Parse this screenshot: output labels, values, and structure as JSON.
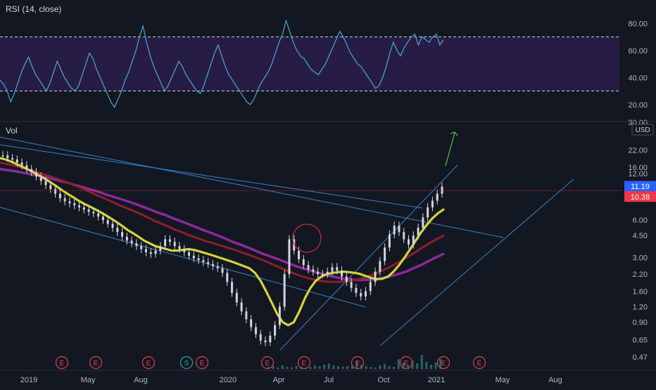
{
  "colors": {
    "background": "#131722",
    "rsi_line": "#4aa8d8",
    "rsi_band_fill": "#2b1f4a",
    "rsi_band_line": "#cfcfe0",
    "candle_up": "#d1d4dc",
    "candle_down": "#d1d4dc",
    "trendline": "#3a8fd8",
    "ma_fast": "#d4d43a",
    "ma_mid": "#8c1f2a",
    "ma_slow": "#8a2b9a",
    "arrow": "#3cc43c",
    "circle": "#c0303a",
    "price_last": "#2962ff",
    "price_ref": "#f23645",
    "event_marker": "#e0404a",
    "split_marker": "#26a69a",
    "volume": "#2b6b6b"
  },
  "rsi_panel": {
    "indicator_label": "RSI (14, close)",
    "ticks": [
      "80.00",
      "60.00",
      "40.00",
      "20.00"
    ],
    "tick_values": [
      80,
      60,
      40,
      20
    ],
    "bottom_label": "30.00"
  },
  "price_panel": {
    "volume_label": "Vol",
    "currency_label": "USD",
    "ticks": [
      "22.00",
      "16.00",
      "6.00",
      "4.50",
      "3.00",
      "2.20",
      "1.60",
      "1.20",
      "0.90",
      "0.65",
      "0.47"
    ],
    "tick_values": [
      22,
      16,
      6,
      4.5,
      3,
      2.2,
      1.6,
      1.2,
      0.9,
      0.65,
      0.47
    ],
    "partial_label": "12.00",
    "last_price": "11.19",
    "ref_price": "10.38"
  },
  "time_axis": {
    "labels": [
      "2019",
      "May",
      "Aug",
      "2020",
      "Apr",
      "Jul",
      "Oct",
      "2021",
      "May",
      "Aug"
    ]
  },
  "events": {
    "earnings_label": "E",
    "split_label": "S"
  },
  "chart_data": {
    "type": "line",
    "title": "",
    "rsi": {
      "ylim": [
        10,
        90
      ],
      "overbought": 70,
      "oversold": 30,
      "values": [
        38,
        35,
        30,
        22,
        28,
        36,
        44,
        50,
        55,
        48,
        42,
        38,
        34,
        30,
        36,
        44,
        52,
        46,
        40,
        36,
        32,
        30,
        34,
        42,
        50,
        58,
        54,
        46,
        40,
        34,
        28,
        22,
        18,
        24,
        30,
        38,
        44,
        52,
        60,
        70,
        78,
        66,
        56,
        48,
        42,
        36,
        30,
        34,
        40,
        46,
        52,
        48,
        42,
        38,
        34,
        30,
        28,
        34,
        42,
        50,
        58,
        64,
        56,
        48,
        42,
        38,
        34,
        30,
        26,
        22,
        20,
        24,
        30,
        36,
        40,
        44,
        50,
        58,
        66,
        72,
        82,
        74,
        66,
        60,
        56,
        54,
        50,
        46,
        44,
        42,
        46,
        50,
        56,
        62,
        68,
        74,
        70,
        64,
        58,
        54,
        50,
        48,
        44,
        40,
        36,
        32,
        34,
        40,
        48,
        58,
        66,
        60,
        56,
        62,
        66,
        70,
        72,
        64,
        70,
        68,
        66,
        70,
        72,
        64,
        68
      ]
    },
    "price": {
      "yscale": "log",
      "ylim": [
        0.43,
        30
      ],
      "close": [
        20,
        19,
        18.5,
        17.5,
        16.6,
        15.5,
        14.6,
        13.5,
        12.4,
        11.5,
        10.7,
        9.8,
        9.0,
        8.5,
        8.2,
        7.9,
        7.6,
        7.3,
        7.0,
        6.8,
        6.4,
        6.0,
        5.6,
        5.2,
        4.8,
        4.4,
        4.1,
        3.9,
        3.7,
        3.5,
        3.3,
        3.2,
        3.4,
        3.7,
        4.2,
        4.0,
        3.7,
        3.5,
        3.3,
        3.1,
        2.95,
        2.85,
        2.75,
        2.65,
        2.55,
        2.45,
        2.25,
        1.9,
        1.55,
        1.3,
        1.1,
        0.95,
        0.82,
        0.72,
        0.64,
        0.62,
        0.7,
        0.85,
        1.2,
        2.2,
        4.2,
        3.4,
        2.9,
        2.6,
        2.4,
        2.3,
        2.2,
        2.2,
        2.3,
        2.5,
        2.35,
        2.1,
        1.9,
        1.7,
        1.55,
        1.45,
        1.6,
        1.9,
        2.3,
        2.8,
        3.6,
        4.6,
        5.4,
        4.8,
        4.2,
        3.8,
        4.5,
        5.2,
        6.3,
        7.6,
        8.6,
        9.8,
        11.19
      ],
      "last": 11.19,
      "ref_line": 10.38,
      "ma_fast": [
        19,
        18.5,
        17.8,
        17,
        16.2,
        15.4,
        14.6,
        13.8,
        13,
        12.2,
        11.4,
        10.6,
        9.9,
        9.3,
        8.7,
        8.2,
        7.8,
        7.4,
        7.0,
        6.6,
        6.2,
        5.8,
        5.4,
        5.0,
        4.7,
        4.4,
        4.1,
        3.9,
        3.7,
        3.6,
        3.5,
        3.4,
        3.4,
        3.45,
        3.5,
        3.45,
        3.35,
        3.25,
        3.15,
        3.05,
        2.95,
        2.85,
        2.75,
        2.65,
        2.55,
        2.45,
        2.25,
        1.95,
        1.6,
        1.3,
        1.05,
        0.9,
        0.85,
        0.9,
        1.1,
        1.4,
        1.7,
        1.95,
        2.1,
        2.2,
        2.25,
        2.28,
        2.3,
        2.28,
        2.25,
        2.2,
        2.12,
        2.05,
        2.0,
        2.02,
        2.1,
        2.3,
        2.6,
        3.0,
        3.5,
        4.1,
        4.8,
        5.5,
        6.2,
        6.8,
        7.3
      ],
      "ma_mid": [
        17.5,
        17,
        16.5,
        16,
        15.4,
        14.8,
        14.2,
        13.6,
        13,
        12.4,
        11.8,
        11.2,
        10.6,
        10.0,
        9.4,
        8.9,
        8.4,
        7.9,
        7.5,
        7.1,
        6.7,
        6.3,
        5.9,
        5.6,
        5.3,
        5.0,
        4.75,
        4.5,
        4.3,
        4.1,
        3.95,
        3.8,
        3.65,
        3.5,
        3.35,
        3.2,
        3.05,
        2.9,
        2.75,
        2.6,
        2.45,
        2.32,
        2.2,
        2.1,
        2.02,
        1.96,
        1.92,
        1.9,
        1.9,
        1.92,
        1.95,
        2.0,
        2.08,
        2.18,
        2.3,
        2.45,
        2.62,
        2.82,
        3.05,
        3.3,
        3.6,
        3.9,
        4.2,
        4.5
      ],
      "ma_slow": [
        15.5,
        15.2,
        14.9,
        14.5,
        14.1,
        13.7,
        13.3,
        12.9,
        12.4,
        12.0,
        11.5,
        11.1,
        10.6,
        10.2,
        9.7,
        9.3,
        8.9,
        8.5,
        8.1,
        7.7,
        7.3,
        6.9,
        6.6,
        6.2,
        5.9,
        5.6,
        5.3,
        5.0,
        4.75,
        4.5,
        4.25,
        4.0,
        3.8,
        3.6,
        3.4,
        3.2,
        3.05,
        2.9,
        2.75,
        2.6,
        2.48,
        2.38,
        2.28,
        2.2,
        2.12,
        2.06,
        2.0,
        1.98,
        1.97,
        1.98,
        2.0,
        2.05,
        2.12,
        2.2,
        2.3,
        2.45,
        2.6,
        2.8,
        3.0,
        3.2
      ]
    }
  }
}
